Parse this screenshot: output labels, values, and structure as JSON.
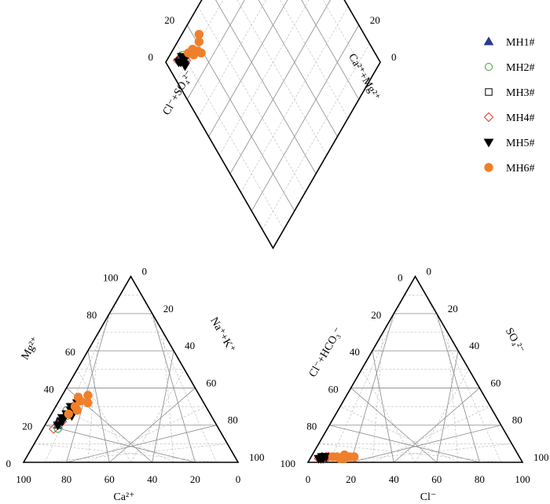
{
  "chart_data": {
    "type": "scatter",
    "subtype": "piper-trilinear",
    "ticks": [
      "0",
      "20",
      "40",
      "60",
      "80",
      "100"
    ],
    "labels": {
      "cation_bottom": "Ca²⁺",
      "cation_left": "Mg²⁺",
      "cation_right": "Na⁺+K⁺",
      "anion_bottom": "Cl⁻",
      "anion_left": "Cl⁻+HCO₃⁻",
      "anion_right": "SO₄²⁻",
      "diamond_left": "Cl⁻+SO₄²⁻",
      "diamond_right": "Ca²⁺+Mg²⁺"
    },
    "legend_position": "top-right",
    "series": [
      {
        "name": "MH1#",
        "marker": "triangle-up",
        "color": "#2b3990",
        "filled": true,
        "points": [
          {
            "mg": 20,
            "na": 6,
            "cl": 6,
            "so4": 2
          },
          {
            "mg": 22,
            "na": 5,
            "cl": 5,
            "so4": 3
          }
        ]
      },
      {
        "name": "MH2#",
        "marker": "circle",
        "color": "#3aa335",
        "filled": false,
        "points": [
          {
            "mg": 18,
            "na": 7,
            "cl": 5,
            "so4": 2
          },
          {
            "mg": 25,
            "na": 8,
            "cl": 6,
            "so4": 2
          },
          {
            "mg": 28,
            "na": 6,
            "cl": 7,
            "so4": 3
          }
        ]
      },
      {
        "name": "MH3#",
        "marker": "square",
        "color": "#000000",
        "filled": false,
        "points": [
          {
            "mg": 22,
            "na": 6,
            "cl": 5,
            "so4": 2
          },
          {
            "mg": 26,
            "na": 7,
            "cl": 6,
            "so4": 3
          }
        ]
      },
      {
        "name": "MH4#",
        "marker": "diamond",
        "color": "#e8352c",
        "filled": false,
        "points": [
          {
            "mg": 18,
            "na": 5,
            "cl": 4,
            "so4": 2
          },
          {
            "mg": 22,
            "na": 7,
            "cl": 6,
            "so4": 2
          },
          {
            "mg": 26,
            "na": 9,
            "cl": 7,
            "so4": 3
          },
          {
            "mg": 30,
            "na": 8,
            "cl": 8,
            "so4": 3
          }
        ]
      },
      {
        "name": "MH5#",
        "marker": "triangle-down",
        "color": "#000000",
        "filled": true,
        "points": [
          {
            "mg": 20,
            "na": 6,
            "cl": 4,
            "so4": 2
          },
          {
            "mg": 22,
            "na": 7,
            "cl": 5,
            "so4": 2
          },
          {
            "mg": 24,
            "na": 6,
            "cl": 6,
            "so4": 3
          },
          {
            "mg": 26,
            "na": 7,
            "cl": 5,
            "so4": 2
          },
          {
            "mg": 28,
            "na": 8,
            "cl": 6,
            "so4": 3
          },
          {
            "mg": 30,
            "na": 7,
            "cl": 7,
            "so4": 3
          },
          {
            "mg": 32,
            "na": 9,
            "cl": 6,
            "so4": 2
          },
          {
            "mg": 25,
            "na": 10,
            "cl": 5,
            "so4": 3
          }
        ]
      },
      {
        "name": "MH6#",
        "marker": "circle",
        "color": "#f07f2a",
        "filled": true,
        "points": [
          {
            "mg": 26,
            "na": 8,
            "cl": 10,
            "so4": 3
          },
          {
            "mg": 30,
            "na": 9,
            "cl": 14,
            "so4": 2
          },
          {
            "mg": 33,
            "na": 10,
            "cl": 18,
            "so4": 3
          },
          {
            "mg": 35,
            "na": 8,
            "cl": 20,
            "so4": 3
          },
          {
            "mg": 36,
            "na": 12,
            "cl": 16,
            "so4": 2
          },
          {
            "mg": 28,
            "na": 11,
            "cl": 12,
            "so4": 3
          },
          {
            "mg": 32,
            "na": 14,
            "cl": 15,
            "so4": 4
          }
        ]
      }
    ]
  }
}
